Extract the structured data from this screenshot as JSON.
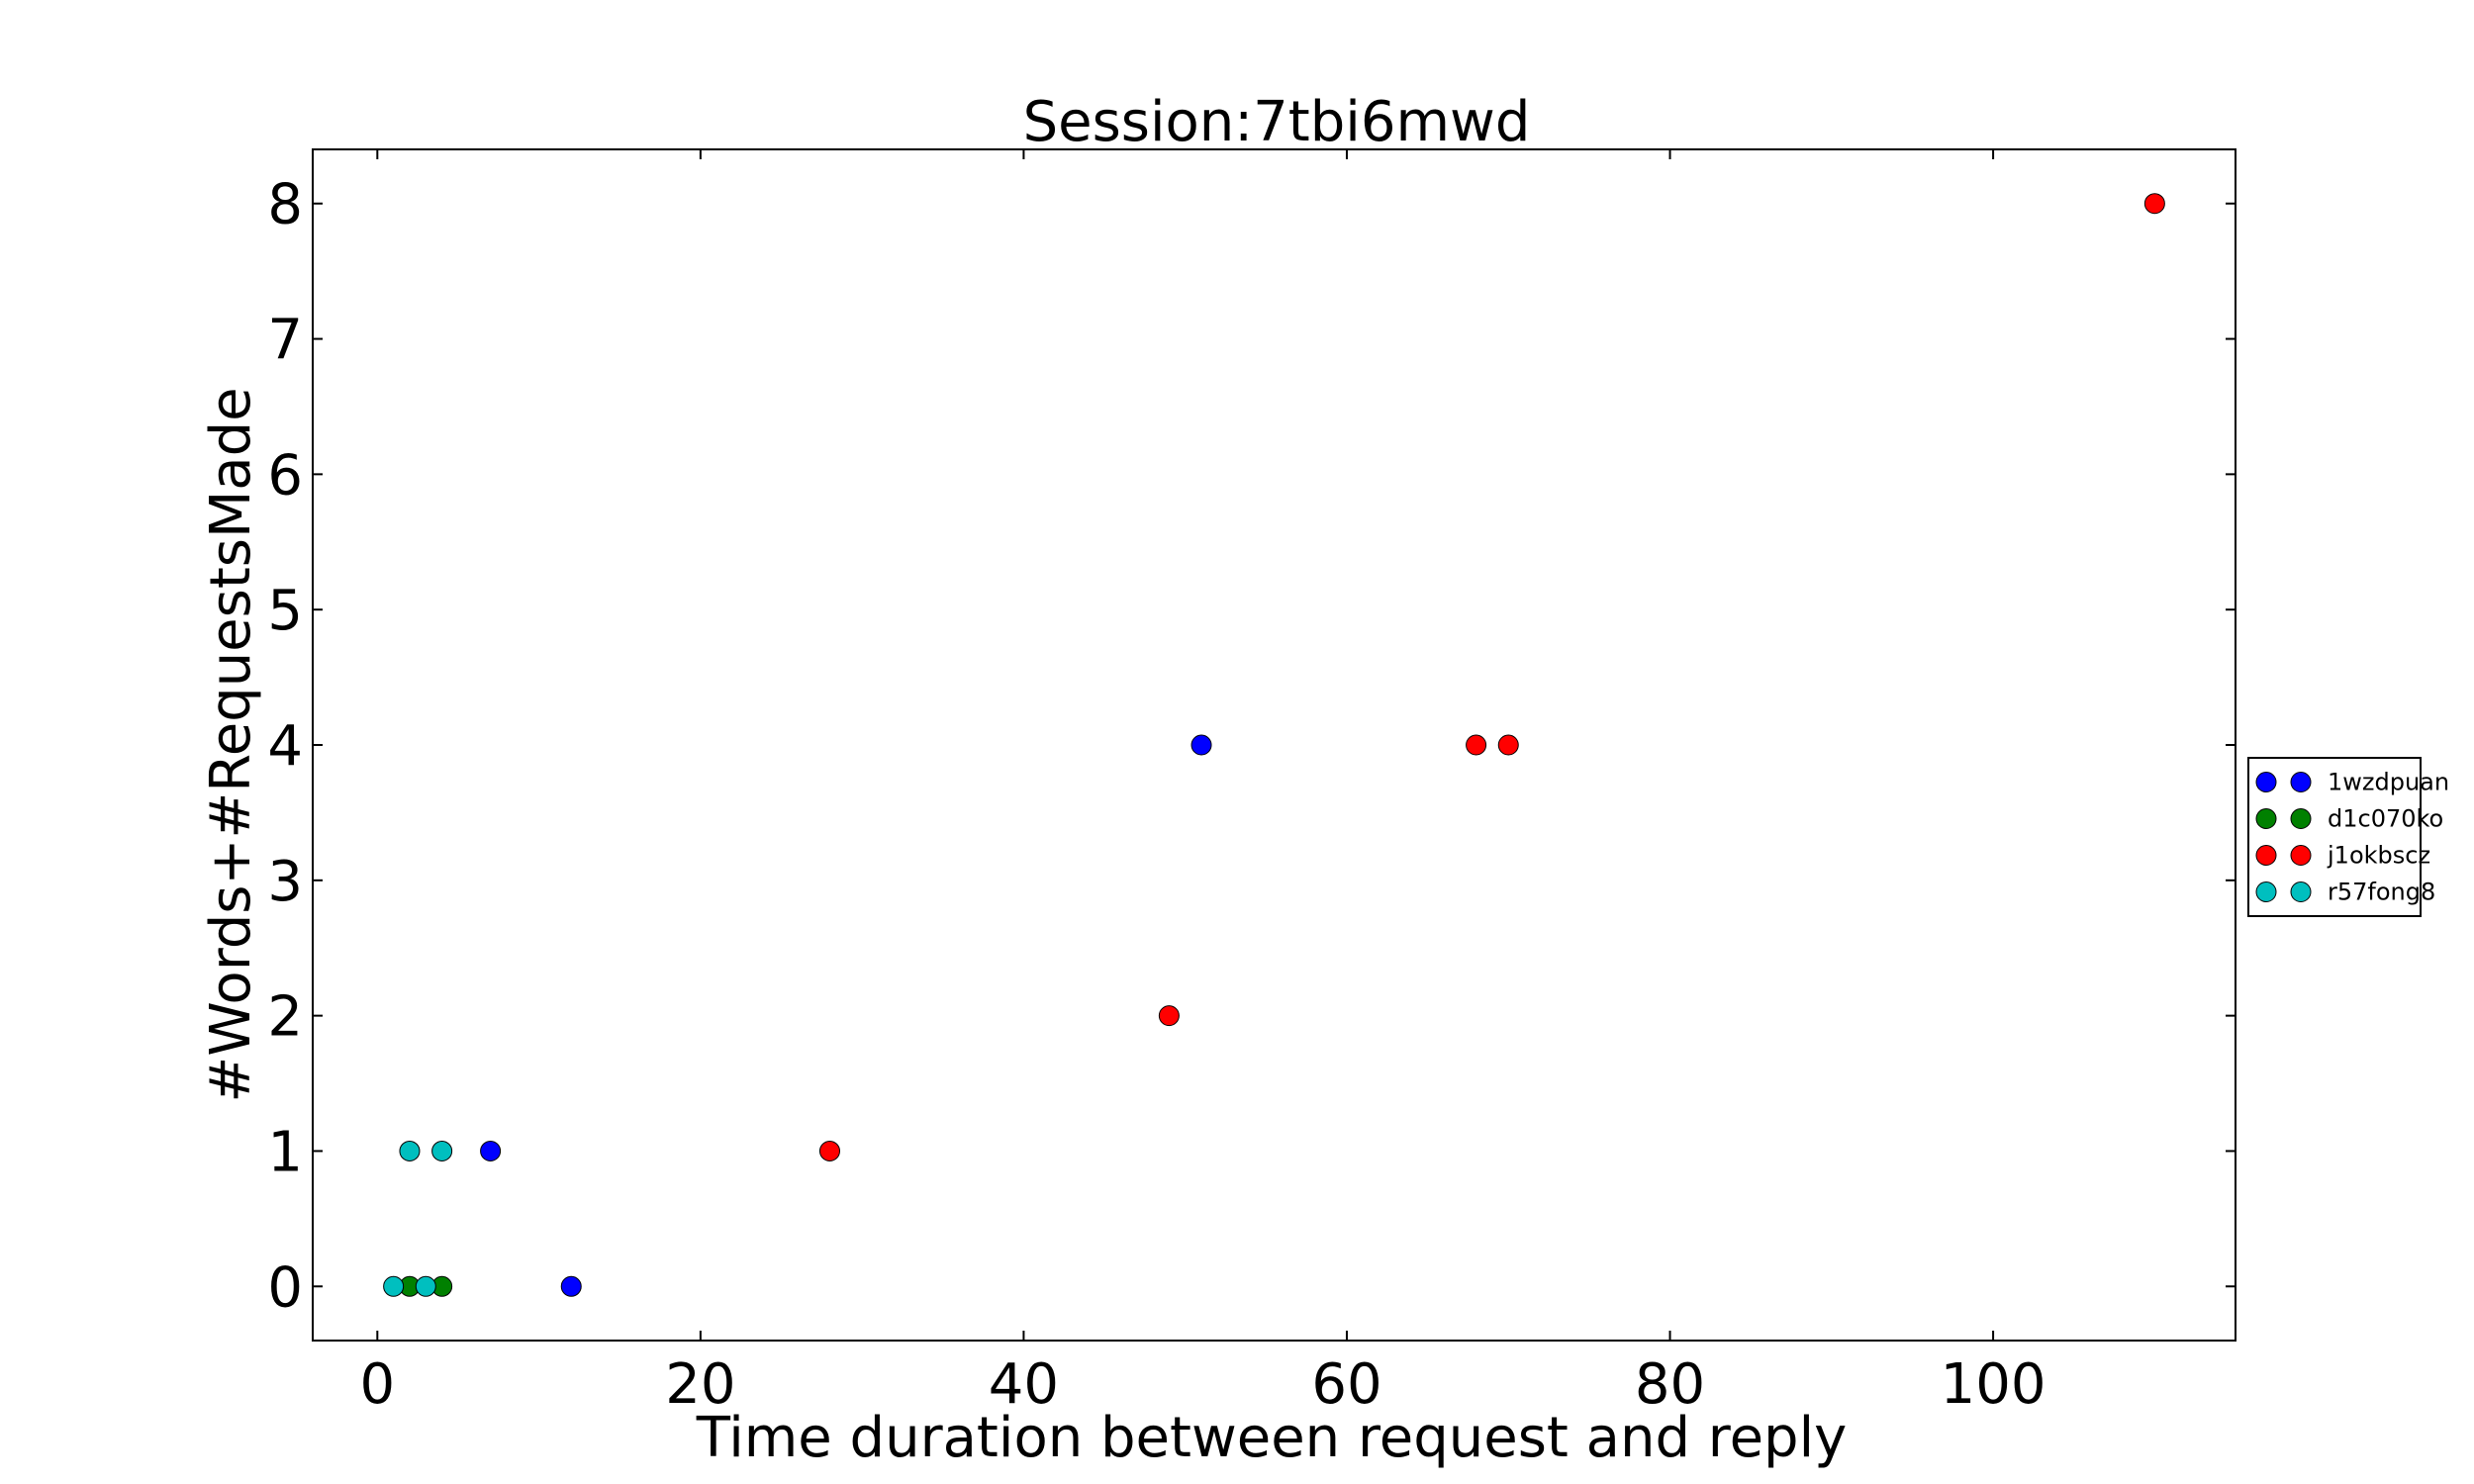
{
  "chart_data": {
    "type": "scatter",
    "title": "Session:7tbi6mwd",
    "xlabel": "Time duration between request and reply",
    "ylabel": "#Words+#RequestsMade",
    "xlim": [
      -4,
      115
    ],
    "ylim": [
      -0.4,
      8.4
    ],
    "xticks": [
      0,
      20,
      40,
      60,
      80,
      100
    ],
    "yticks": [
      0,
      1,
      2,
      3,
      4,
      5,
      6,
      7,
      8
    ],
    "grid": false,
    "legend_position": "right-outside",
    "series": [
      {
        "name": "1wzdpuan",
        "color": "#0000ff",
        "points": [
          [
            7,
            1
          ],
          [
            12,
            0
          ],
          [
            51,
            4
          ]
        ]
      },
      {
        "name": "d1c070ko",
        "color": "#008000",
        "points": [
          [
            2,
            0
          ],
          [
            4,
            0
          ]
        ]
      },
      {
        "name": "j1okbscz",
        "color": "#ff0000",
        "points": [
          [
            28,
            1
          ],
          [
            49,
            2
          ],
          [
            68,
            4
          ],
          [
            70,
            4
          ],
          [
            110,
            8
          ]
        ]
      },
      {
        "name": "r57fong8",
        "color": "#00bfbf",
        "points": [
          [
            1,
            0
          ],
          [
            3,
            0
          ],
          [
            2,
            1
          ],
          [
            4,
            1
          ]
        ]
      }
    ]
  }
}
